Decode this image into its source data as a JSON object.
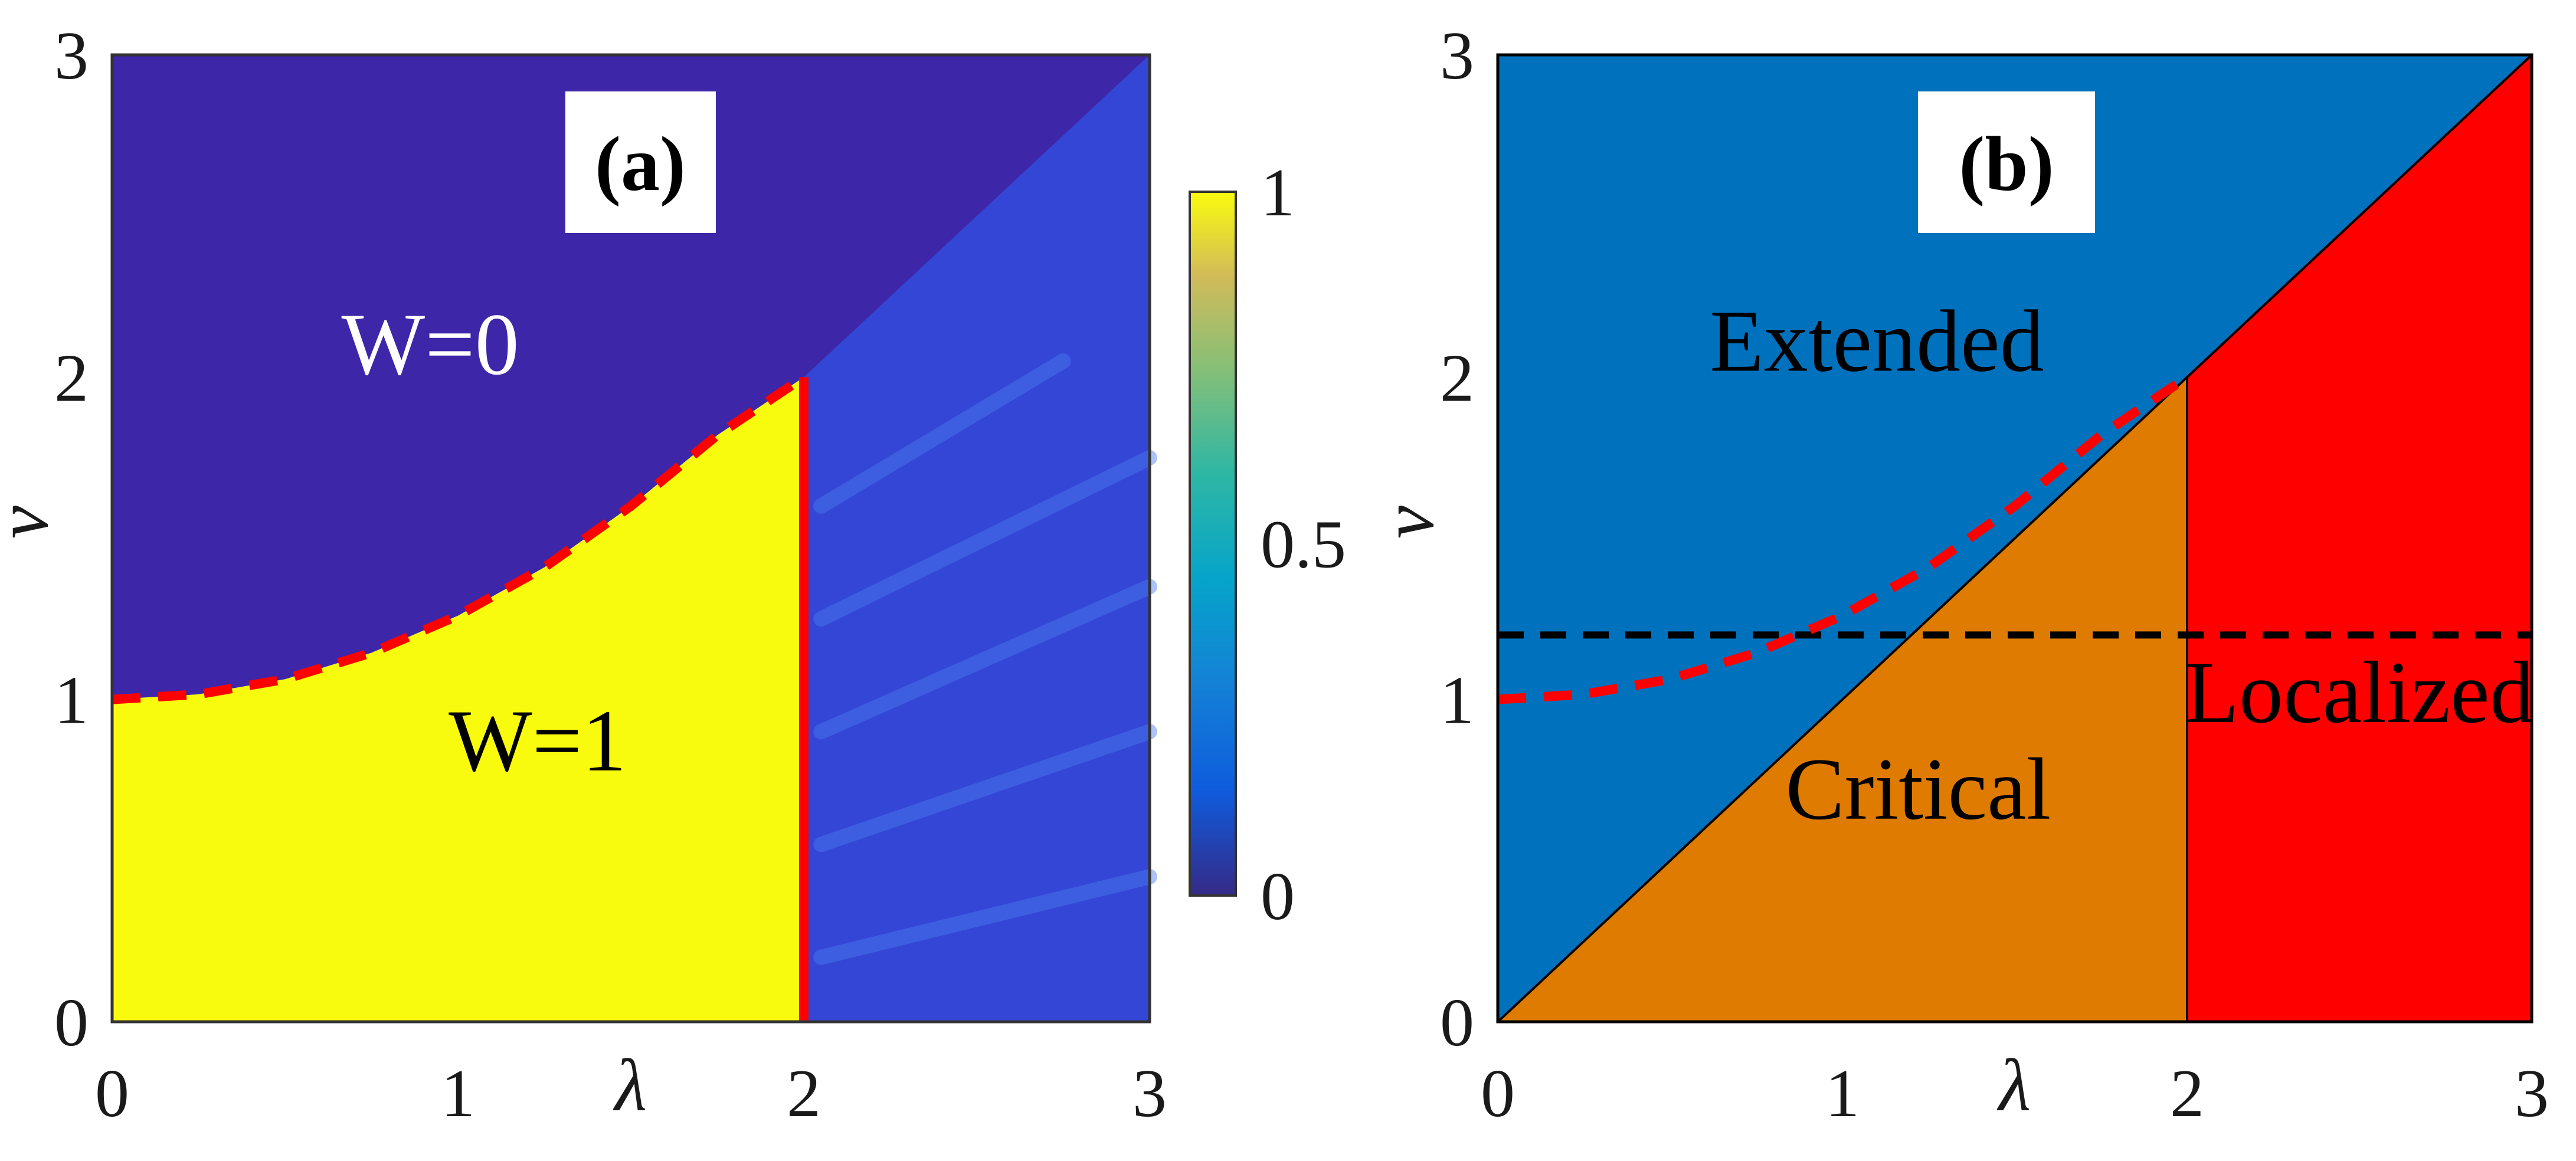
{
  "chart_data": [
    {
      "id": "a",
      "type": "heatmap",
      "panel_label": "(a)",
      "xlabel": "λ",
      "ylabel": "v",
      "xlim": [
        0,
        3
      ],
      "ylim": [
        0,
        3
      ],
      "xticks": [
        "0",
        "1",
        "2",
        "3"
      ],
      "yticks": [
        "0",
        "1",
        "2",
        "3"
      ],
      "colorbar": {
        "range": [
          0,
          1
        ],
        "ticks": [
          "0",
          "0.5",
          "1"
        ]
      },
      "regions": [
        {
          "label": "W=0",
          "value": 0,
          "label_at": [
            0.92,
            2.01
          ]
        },
        {
          "label": "W=1",
          "value": 1,
          "label_at": [
            1.23,
            0.78
          ]
        }
      ],
      "boundary_dashed": {
        "color": "#ff0000",
        "x": [
          0,
          0.25,
          0.5,
          0.75,
          1.0,
          1.25,
          1.5,
          1.75,
          2.0
        ],
        "y": [
          1.0,
          1.016,
          1.063,
          1.145,
          1.26,
          1.41,
          1.6,
          1.82,
          2.0
        ]
      },
      "boundary_solid": {
        "color": "#ff0000",
        "x": [
          2,
          2
        ],
        "y": [
          0,
          2
        ]
      },
      "colors": {
        "W0": "#3d26a8",
        "W1": "#f9fb0e",
        "disordered": "#3446d6",
        "streak": "#4a7cf0"
      }
    },
    {
      "id": "b",
      "type": "area",
      "panel_label": "(b)",
      "xlabel": "λ",
      "ylabel": "v",
      "xlim": [
        0,
        3
      ],
      "ylim": [
        0,
        3
      ],
      "xticks": [
        "0",
        "1",
        "2",
        "3"
      ],
      "yticks": [
        "0",
        "1",
        "2",
        "3"
      ],
      "regions": [
        {
          "label": "Extended",
          "color": "#0072bd",
          "polygon": [
            [
              0,
              0
            ],
            [
              3,
              3
            ],
            [
              0,
              3
            ]
          ],
          "label_at": [
            1.1,
            2.02
          ]
        },
        {
          "label": "Critical",
          "color": "#de7b00",
          "polygon": [
            [
              0,
              0
            ],
            [
              2,
              0
            ],
            [
              2,
              2
            ]
          ],
          "label_at": [
            1.22,
            0.63
          ]
        },
        {
          "label": "Localized",
          "color": "#ff0000",
          "polygon": [
            [
              2,
              0
            ],
            [
              3,
              0
            ],
            [
              3,
              3
            ],
            [
              2,
              2
            ]
          ],
          "label_at": [
            2.5,
            0.93
          ]
        }
      ],
      "boundary_dashed": {
        "color": "#ff0000",
        "x": [
          0,
          0.25,
          0.5,
          0.75,
          1.0,
          1.25,
          1.5,
          1.75,
          2.0
        ],
        "y": [
          1.0,
          1.016,
          1.063,
          1.145,
          1.26,
          1.41,
          1.6,
          1.82,
          2.0
        ]
      },
      "reference_line": {
        "color": "#000000",
        "style": "dashed",
        "y": 1.2
      }
    }
  ]
}
